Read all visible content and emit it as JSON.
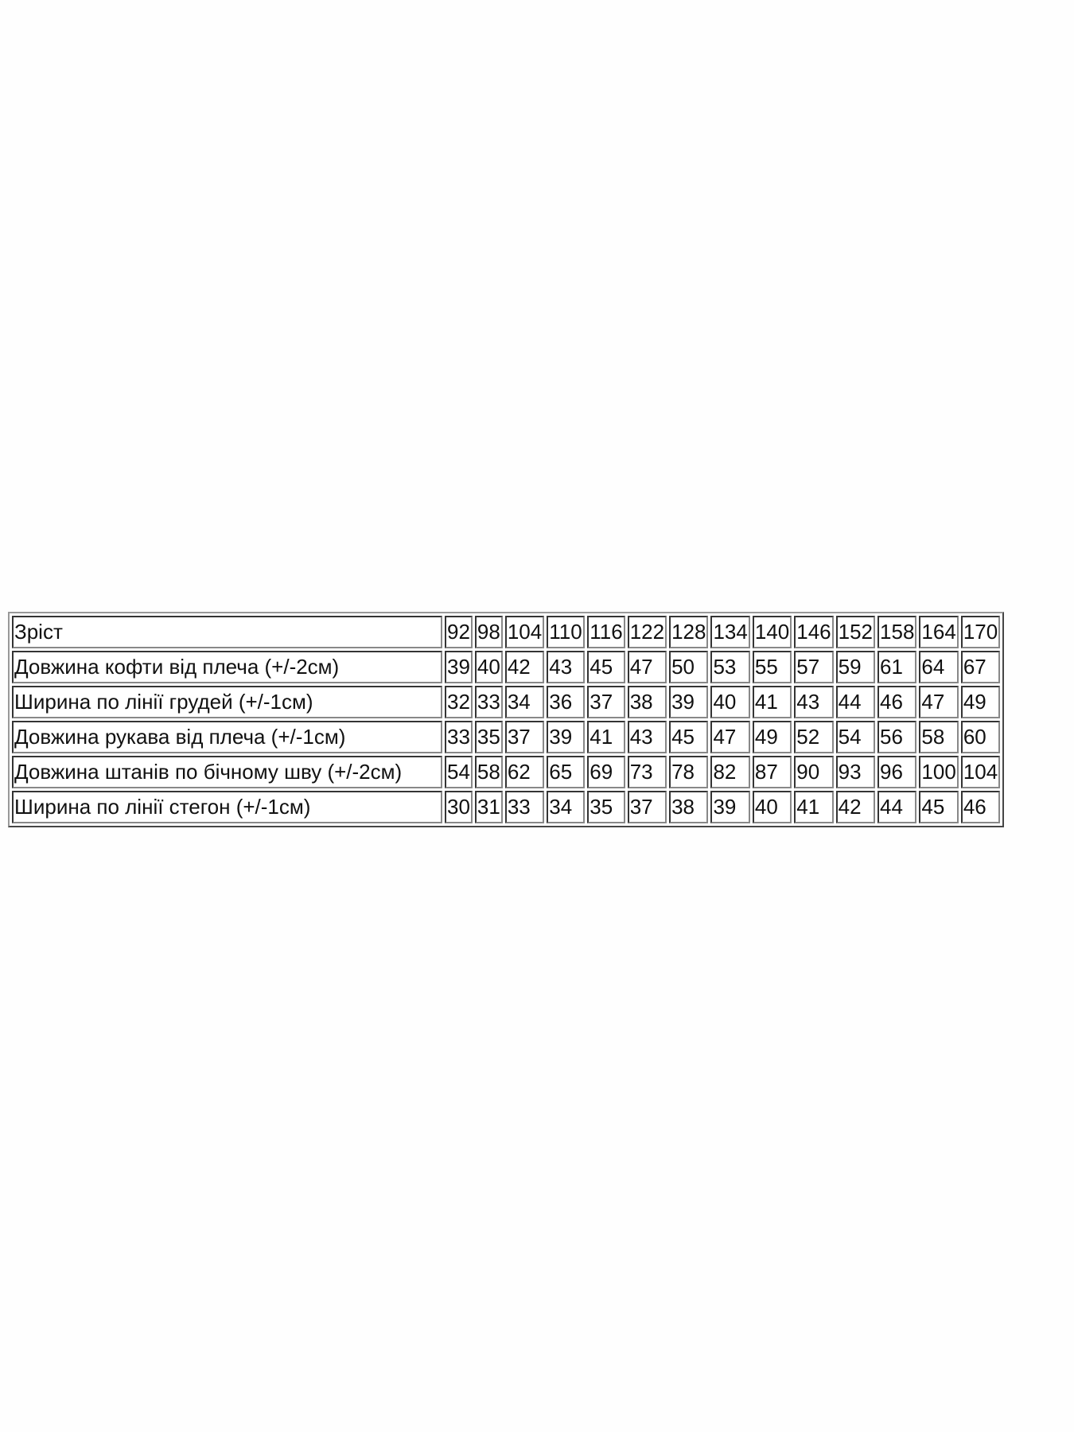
{
  "size_table": {
    "rows": [
      {
        "label": "Зріст",
        "values": [
          "92",
          "98",
          "104",
          "110",
          "116",
          "122",
          "128",
          "134",
          "140",
          "146",
          "152",
          "158",
          "164",
          "170"
        ]
      },
      {
        "label": "Довжина кофти від плеча (+/-2см)",
        "values": [
          "39",
          "40",
          "42",
          "43",
          "45",
          "47",
          "50",
          "53",
          "55",
          "57",
          "59",
          "61",
          "64",
          "67"
        ]
      },
      {
        "label": "Ширина по лінії грудей (+/-1см)",
        "values": [
          "32",
          "33",
          "34",
          "36",
          "37",
          "38",
          "39",
          "40",
          "41",
          "43",
          "44",
          "46",
          "47",
          "49"
        ]
      },
      {
        "label": "Довжина рукава від плеча (+/-1см)",
        "values": [
          "33",
          "35",
          "37",
          "39",
          "41",
          "43",
          "45",
          "47",
          "49",
          "52",
          "54",
          "56",
          "58",
          "60"
        ]
      },
      {
        "label": "Довжина штанів по бічному шву (+/-2см)",
        "values": [
          "54",
          "58",
          "62",
          "65",
          "69",
          "73",
          "78",
          "82",
          "87",
          "90",
          "93",
          "96",
          "100",
          "104"
        ]
      },
      {
        "label": "Ширина по лінії стегон (+/-1см)",
        "values": [
          "30",
          "31",
          "33",
          "34",
          "35",
          "37",
          "38",
          "39",
          "40",
          "41",
          "42",
          "44",
          "45",
          "46"
        ]
      }
    ]
  }
}
